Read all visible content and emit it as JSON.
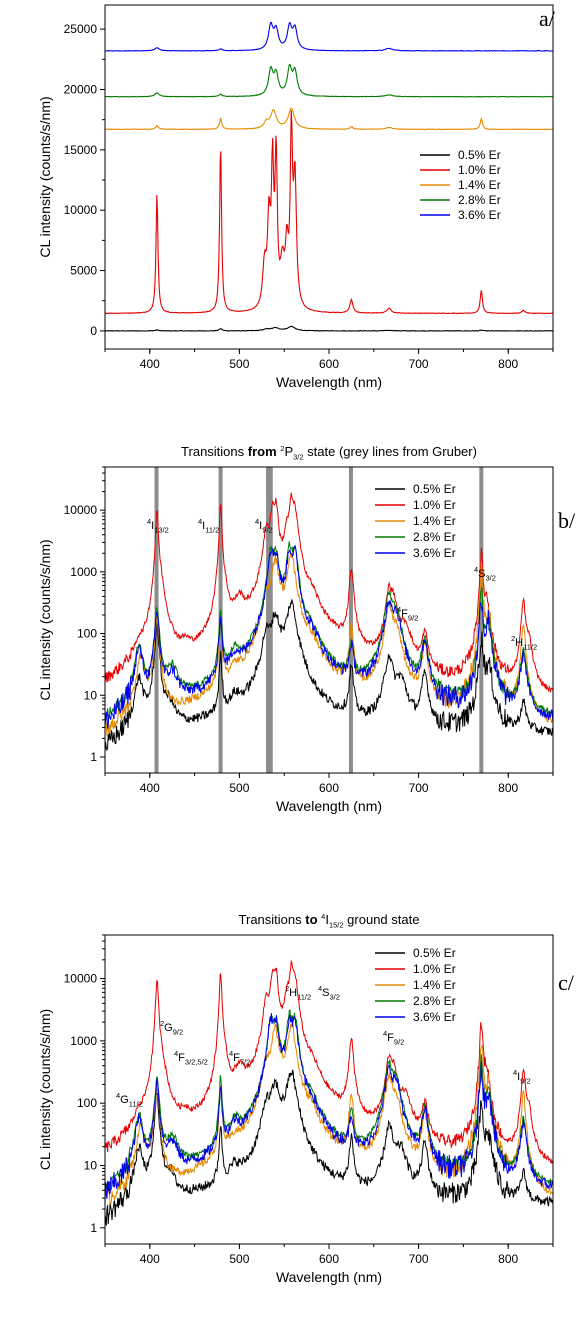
{
  "chart_data": [
    {
      "panel_label": "a/",
      "type": "line",
      "title": "",
      "xlabel": "Wavelength (nm)",
      "ylabel": "CL intensity (counts/s/nm)",
      "xlim": [
        350,
        850
      ],
      "ylim": [
        -1500,
        27000
      ],
      "yscale": "linear",
      "xticks": [
        400,
        500,
        600,
        700,
        800
      ],
      "yticks": [
        0,
        5000,
        10000,
        15000,
        20000,
        25000
      ],
      "ytick_labels": [
        "0",
        "5000",
        "10000",
        "15000",
        "20000",
        "25000"
      ],
      "legend_position": "right",
      "series": [
        {
          "name": "0.5% Er",
          "color": "#000000",
          "baseline": 0,
          "peaks": [
            [
              408,
              80,
              2
            ],
            [
              479,
              180,
              2
            ],
            [
              530,
              120,
              4
            ],
            [
              540,
              250,
              5
            ],
            [
              558,
              350,
              5
            ],
            [
              667,
              40,
              6
            ],
            [
              770,
              60,
              2
            ]
          ]
        },
        {
          "name": "1.0% Er",
          "color": "#e60000",
          "baseline": 1450,
          "peaks": [
            [
              408,
              9900,
              1.3
            ],
            [
              479,
              14000,
              1.3
            ],
            [
              528,
              3500,
              2.5
            ],
            [
              533,
              7000,
              2
            ],
            [
              537,
              11000,
              1.5
            ],
            [
              541,
              12200,
              1.5
            ],
            [
              548,
              3500,
              3
            ],
            [
              553,
              4500,
              2
            ],
            [
              558,
              13800,
              1.5
            ],
            [
              562,
              10500,
              2
            ],
            [
              625,
              1100,
              2
            ],
            [
              667,
              400,
              3
            ],
            [
              770,
              1900,
              1.5
            ],
            [
              817,
              250,
              2
            ]
          ]
        },
        {
          "name": "1.4% Er",
          "color": "#e68a00",
          "baseline": 16700,
          "peaks": [
            [
              408,
              280,
              2
            ],
            [
              479,
              900,
              1.5
            ],
            [
              530,
              500,
              3
            ],
            [
              538,
              1500,
              4
            ],
            [
              558,
              1700,
              4
            ],
            [
              625,
              200,
              2
            ],
            [
              667,
              150,
              4
            ],
            [
              770,
              900,
              1.5
            ]
          ]
        },
        {
          "name": "2.8% Er",
          "color": "#007a00",
          "baseline": 19400,
          "peaks": [
            [
              408,
              300,
              3
            ],
            [
              479,
              200,
              2
            ],
            [
              535,
              2100,
              3
            ],
            [
              541,
              1700,
              3
            ],
            [
              556,
              2200,
              3
            ],
            [
              562,
              1900,
              3
            ],
            [
              667,
              150,
              5
            ]
          ]
        },
        {
          "name": "3.6% Er",
          "color": "#0000ee",
          "baseline": 23200,
          "peaks": [
            [
              408,
              250,
              3
            ],
            [
              479,
              150,
              2
            ],
            [
              535,
              2000,
              3
            ],
            [
              541,
              1600,
              3
            ],
            [
              556,
              1900,
              3
            ],
            [
              562,
              1700,
              3
            ],
            [
              667,
              200,
              5
            ]
          ]
        }
      ]
    },
    {
      "panel_label": "b/",
      "type": "line",
      "title": {
        "pre": "Transitions ",
        "bold": "from",
        "mid": " ",
        "sup": "2",
        "main": "P",
        "sub": "3/2",
        "post": " state (grey lines from Gruber)"
      },
      "xlabel": "Wavelength (nm)",
      "ylabel": "CL intensity (counts/s/nm)",
      "xlim": [
        350,
        850
      ],
      "ylim": [
        0.55,
        50000
      ],
      "yscale": "log",
      "xticks": [
        400,
        500,
        600,
        700,
        800
      ],
      "yticks": [
        1,
        10,
        100,
        1000,
        10000
      ],
      "ytick_labels": [
        "1",
        "10",
        "100",
        "1000",
        "10000"
      ],
      "legend_position": "top-right",
      "reference_lines": [
        407.5,
        479,
        532,
        535,
        624.5,
        770
      ],
      "annotations": [
        {
          "sup": "4",
          "main": "I",
          "sub": "13/2"
        },
        {
          "sup": "4",
          "main": "I",
          "sub": "11/2"
        },
        {
          "sup": "4",
          "main": "I",
          "sub": "9/2"
        },
        {
          "sup": "4",
          "main": "F",
          "sub": "9/2"
        },
        {
          "sup": "4",
          "main": "S",
          "sub": "3/2"
        },
        {
          "sup": "2",
          "main": "H",
          "sub": "11/2"
        }
      ]
    },
    {
      "panel_label": "c/",
      "type": "line",
      "title": {
        "pre": "Transitions ",
        "bold": "to",
        "mid": " ",
        "sup": "4",
        "main": "I",
        "sub": "15/2",
        "post": " ground state"
      },
      "xlabel": "Wavelength (nm)",
      "ylabel": "CL intensity (counts/s/nm)",
      "xlim": [
        350,
        850
      ],
      "ylim": [
        0.55,
        50000
      ],
      "yscale": "log",
      "xticks": [
        400,
        500,
        600,
        700,
        800
      ],
      "yticks": [
        1,
        10,
        100,
        1000,
        10000
      ],
      "ytick_labels": [
        "1",
        "10",
        "100",
        "1000",
        "10000"
      ],
      "legend_position": "top-right",
      "annotations": [
        {
          "sup": "4",
          "main": "G",
          "sub": "11/2"
        },
        {
          "sup": "2",
          "main": "G",
          "sub": "9/2"
        },
        {
          "sup": "4",
          "main": "F",
          "sub": "3/2,5/2"
        },
        {
          "sup": "4",
          "main": "F",
          "sub": "7/2"
        },
        {
          "sup": "2",
          "main": "H",
          "sub": "11/2"
        },
        {
          "sup": "4",
          "main": "S",
          "sub": "3/2"
        },
        {
          "sup": "4",
          "main": "F",
          "sub": "9/2"
        },
        {
          "sup": "4",
          "main": "I",
          "sub": "9/2"
        }
      ]
    }
  ],
  "log_series": [
    {
      "name": "0.5% Er",
      "color": "#000000",
      "floor": 2.2,
      "noise": 0.18,
      "features": [
        [
          388,
          16,
          4
        ],
        [
          408,
          150,
          1.8
        ],
        [
          422,
          4,
          5
        ],
        [
          479,
          40,
          1.3
        ],
        [
          495,
          4,
          6
        ],
        [
          530,
          80,
          4
        ],
        [
          540,
          180,
          5
        ],
        [
          558,
          300,
          5
        ],
        [
          625,
          25,
          2
        ],
        [
          667,
          40,
          4
        ],
        [
          680,
          15,
          6
        ],
        [
          707,
          20,
          3
        ],
        [
          770,
          80,
          2
        ],
        [
          778,
          25,
          4
        ],
        [
          817,
          5,
          3
        ]
      ]
    },
    {
      "name": "1.0% Er",
      "color": "#e60000",
      "floor": 4,
      "noise": 0.1,
      "features": [
        [
          388,
          25,
          4
        ],
        [
          408,
          9500,
          1.3
        ],
        [
          412,
          500,
          4
        ],
        [
          440,
          20,
          5
        ],
        [
          479,
          13000,
          1.2
        ],
        [
          485,
          200,
          3
        ],
        [
          500,
          250,
          6
        ],
        [
          530,
          4000,
          3
        ],
        [
          537,
          10000,
          2.5
        ],
        [
          541,
          11000,
          2
        ],
        [
          553,
          4000,
          3
        ],
        [
          558,
          13000,
          2
        ],
        [
          562,
          9000,
          3
        ],
        [
          580,
          200,
          8
        ],
        [
          625,
          1100,
          2
        ],
        [
          667,
          450,
          3
        ],
        [
          672,
          300,
          4
        ],
        [
          685,
          100,
          6
        ],
        [
          707,
          80,
          3
        ],
        [
          770,
          1900,
          1.5
        ],
        [
          776,
          300,
          3
        ],
        [
          817,
          330,
          2
        ],
        [
          823,
          60,
          3
        ]
      ]
    },
    {
      "name": "1.4% Er",
      "color": "#e68a00",
      "floor": 1.6,
      "noise": 0.15,
      "features": [
        [
          390,
          40,
          4
        ],
        [
          408,
          180,
          2
        ],
        [
          479,
          160,
          1.3
        ],
        [
          495,
          10,
          6
        ],
        [
          530,
          300,
          4
        ],
        [
          540,
          1500,
          4
        ],
        [
          558,
          1800,
          4
        ],
        [
          580,
          40,
          8
        ],
        [
          625,
          130,
          2
        ],
        [
          667,
          250,
          4
        ],
        [
          675,
          100,
          5
        ],
        [
          707,
          60,
          3
        ],
        [
          770,
          1000,
          1.5
        ],
        [
          778,
          200,
          3
        ],
        [
          817,
          150,
          2
        ]
      ]
    },
    {
      "name": "2.8% Er",
      "color": "#007a00",
      "floor": 3.2,
      "noise": 0.12,
      "features": [
        [
          388,
          60,
          4
        ],
        [
          408,
          270,
          2
        ],
        [
          425,
          20,
          6
        ],
        [
          479,
          250,
          1.3
        ],
        [
          495,
          30,
          6
        ],
        [
          535,
          2100,
          3
        ],
        [
          541,
          1800,
          3
        ],
        [
          556,
          2300,
          3
        ],
        [
          562,
          2000,
          3
        ],
        [
          580,
          60,
          8
        ],
        [
          625,
          60,
          2
        ],
        [
          667,
          400,
          4
        ],
        [
          675,
          200,
          5
        ],
        [
          707,
          80,
          3
        ],
        [
          770,
          500,
          1.5
        ],
        [
          778,
          150,
          3
        ],
        [
          817,
          50,
          3
        ]
      ]
    },
    {
      "name": "3.6% Er",
      "color": "#0000ee",
      "floor": 2.8,
      "noise": 0.2,
      "features": [
        [
          388,
          50,
          4
        ],
        [
          408,
          220,
          2
        ],
        [
          425,
          15,
          6
        ],
        [
          479,
          180,
          1.3
        ],
        [
          495,
          25,
          6
        ],
        [
          535,
          2000,
          3
        ],
        [
          541,
          1700,
          3
        ],
        [
          556,
          2000,
          3
        ],
        [
          562,
          1800,
          3
        ],
        [
          580,
          50,
          8
        ],
        [
          625,
          50,
          2
        ],
        [
          667,
          300,
          4
        ],
        [
          675,
          180,
          5
        ],
        [
          707,
          70,
          3
        ],
        [
          770,
          400,
          1.5
        ],
        [
          778,
          150,
          3
        ],
        [
          817,
          40,
          3
        ]
      ]
    }
  ]
}
